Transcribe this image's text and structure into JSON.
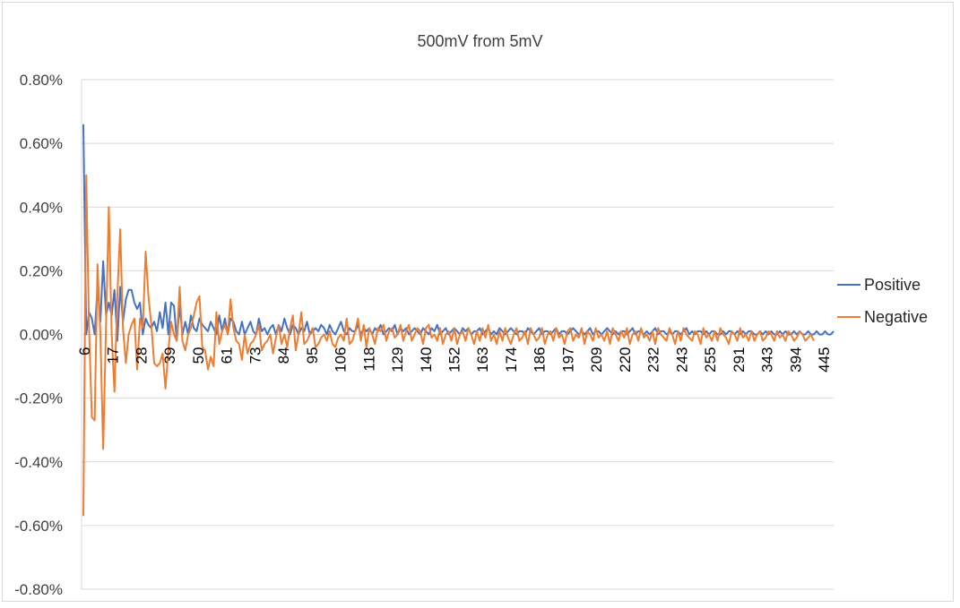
{
  "chart_data": {
    "type": "line",
    "title": "500mV from 5mV",
    "xlabel": "",
    "ylabel": "",
    "ylim": [
      -0.8,
      0.8
    ],
    "y_unit": "%",
    "y_ticks": [
      "0.80%",
      "0.60%",
      "0.40%",
      "0.20%",
      "0.00%",
      "-0.20%",
      "-0.40%",
      "-0.60%",
      "-0.80%"
    ],
    "x_tick_labels": [
      "6",
      "17",
      "28",
      "39",
      "50",
      "61",
      "73",
      "84",
      "95",
      "106",
      "118",
      "129",
      "140",
      "152",
      "163",
      "174",
      "186",
      "197",
      "209",
      "220",
      "232",
      "243",
      "255",
      "291",
      "343",
      "394",
      "445"
    ],
    "grid": true,
    "legend_position": "right",
    "series": [
      {
        "name": "Positive",
        "color": "#4472c4",
        "values": [
          0.66,
          0.0,
          0.07,
          0.05,
          0.0,
          0.15,
          0.04,
          0.23,
          0.06,
          0.1,
          0.06,
          0.14,
          -0.02,
          0.15,
          0.04,
          0.11,
          0.14,
          0.14,
          0.1,
          0.08,
          0.1,
          0.0,
          0.05,
          0.03,
          0.02,
          0.04,
          0.01,
          0.07,
          0.02,
          0.1,
          0.0,
          0.1,
          0.09,
          -0.02,
          0.09,
          0.0,
          0.04,
          0.0,
          0.06,
          0.02,
          0.01,
          0.05,
          0.03,
          0.02,
          0.01,
          0.04,
          0.02,
          0.0,
          0.06,
          0.01,
          0.05,
          0.0,
          0.05,
          0.04,
          0.01,
          0.0,
          0.04,
          0.0,
          0.02,
          0.04,
          0.01,
          0.0,
          0.05,
          0.01,
          0.02,
          0.0,
          0.02,
          0.03,
          0.0,
          0.03,
          0.01,
          0.05,
          0.02,
          0.0,
          0.03,
          0.02,
          0.0,
          0.02,
          0.01,
          0.04,
          0.0,
          0.01,
          0.02,
          0.01,
          0.03,
          0.02,
          0.0,
          0.03,
          0.01,
          0.0,
          0.02,
          0.04,
          0.01,
          0.0,
          0.02,
          0.01,
          0.01,
          0.03,
          0.0,
          0.02,
          0.01,
          0.02,
          0.0,
          0.02,
          0.01,
          0.03,
          0.0,
          0.01,
          0.02,
          0.01,
          0.03,
          0.0,
          0.02,
          0.01,
          0.02,
          0.0,
          0.01,
          0.02,
          0.01,
          0.0,
          0.02,
          0.01,
          0.0,
          0.02,
          0.01,
          0.03,
          0.0,
          0.01,
          0.02,
          0.0,
          0.01,
          0.02,
          0.01,
          0.0,
          0.02,
          0.01,
          0.02,
          0.0,
          0.01,
          0.01,
          0.02,
          0.0,
          0.01,
          0.02,
          0.0,
          0.01,
          0.0,
          0.02,
          0.01,
          0.0,
          0.01,
          0.02,
          0.01,
          0.0,
          0.01,
          0.01,
          0.0,
          0.02,
          0.01,
          0.0,
          0.01,
          0.02,
          0.0,
          0.01,
          0.01,
          0.0,
          0.01,
          0.02,
          0.0,
          0.01,
          0.01,
          0.0,
          0.01,
          0.02,
          0.01,
          0.0,
          0.01,
          0.0,
          0.01,
          0.02,
          0.0,
          0.01,
          0.01,
          0.0,
          0.01,
          0.02,
          0.01,
          0.0,
          0.01,
          0.0,
          0.01,
          0.01,
          0.0,
          0.01,
          0.02,
          0.0,
          0.01,
          0.01,
          0.0,
          0.01,
          0.0,
          0.01,
          0.02,
          0.0,
          0.01,
          0.01,
          0.0,
          0.01,
          0.0,
          0.01,
          0.01,
          0.0,
          0.01,
          0.02,
          0.0,
          0.01,
          0.0,
          0.01,
          0.01,
          0.0,
          0.01,
          0.0,
          0.01,
          0.01,
          0.0,
          0.0,
          0.01,
          0.0,
          0.01,
          0.01,
          0.0,
          0.01,
          0.0,
          0.01,
          0.0,
          0.01,
          0.01,
          0.0,
          0.0,
          0.01,
          0.0,
          0.01,
          0.0,
          0.01,
          0.0,
          0.0,
          0.01,
          0.0,
          0.01,
          0.0,
          0.0,
          0.01,
          0.0,
          0.01,
          0.0,
          0.0,
          0.01,
          0.0,
          0.0,
          0.01,
          0.0,
          0.0,
          0.01,
          0.0,
          0.0,
          0.01
        ]
      },
      {
        "name": "Negative",
        "color": "#ed7d31",
        "values": [
          -0.57,
          0.5,
          0.02,
          -0.26,
          -0.27,
          0.22,
          0.0,
          -0.36,
          0.03,
          0.4,
          0.0,
          -0.18,
          0.12,
          0.33,
          0.02,
          -0.09,
          0.0,
          0.03,
          0.05,
          -0.11,
          0.05,
          0.02,
          0.26,
          0.12,
          0.03,
          -0.09,
          -0.1,
          -0.09,
          -0.06,
          -0.17,
          -0.05,
          0.04,
          0.0,
          -0.02,
          0.15,
          -0.02,
          -0.05,
          0.0,
          0.02,
          0.06,
          0.1,
          0.12,
          -0.04,
          -0.05,
          -0.11,
          -0.07,
          -0.1,
          0.07,
          -0.03,
          0.01,
          0.03,
          0.0,
          0.11,
          0.02,
          -0.02,
          -0.03,
          -0.08,
          0.0,
          -0.06,
          -0.03,
          -0.02,
          0.0,
          0.03,
          -0.05,
          -0.03,
          -0.02,
          0.0,
          -0.06,
          -0.01,
          0.03,
          -0.03,
          0.0,
          -0.04,
          0.02,
          0.06,
          -0.05,
          0.0,
          0.07,
          -0.03,
          -0.02,
          0.0,
          0.02,
          -0.04,
          -0.03,
          -0.01,
          0.0,
          -0.02,
          0.01,
          -0.03,
          -0.04,
          -0.01,
          0.0,
          -0.02,
          0.05,
          -0.03,
          -0.02,
          0.01,
          0.05,
          -0.02,
          0.03,
          -0.04,
          0.02,
          0.0,
          -0.03,
          0.02,
          0.01,
          0.03,
          -0.02,
          0.01,
          0.02,
          -0.01,
          0.0,
          0.03,
          -0.02,
          0.01,
          0.03,
          -0.02,
          0.0,
          0.02,
          0.01,
          -0.03,
          0.02,
          0.03,
          -0.01,
          0.0,
          -0.02,
          0.02,
          -0.03,
          0.0,
          0.01,
          -0.02,
          0.02,
          -0.03,
          0.0,
          0.01,
          -0.02,
          0.02,
          0.0,
          -0.03,
          0.01,
          -0.02,
          0.02,
          -0.01,
          0.03,
          -0.02,
          0.0,
          -0.03,
          0.01,
          -0.02,
          0.02,
          -0.01,
          -0.03,
          0.0,
          0.02,
          -0.02,
          -0.01,
          0.01,
          -0.03,
          0.02,
          0.0,
          -0.02,
          -0.01,
          0.02,
          -0.03,
          0.0,
          0.01,
          -0.02,
          0.02,
          -0.01,
          0.0,
          -0.03,
          0.01,
          0.02,
          -0.02,
          0.0,
          -0.01,
          0.02,
          -0.03,
          0.01,
          0.0,
          -0.02,
          0.02,
          -0.01,
          0.0,
          -0.02,
          0.01,
          -0.03,
          0.02,
          0.0,
          -0.02,
          0.01,
          -0.01,
          0.02,
          -0.03,
          0.0,
          0.01,
          -0.02,
          0.02,
          -0.01,
          0.0,
          -0.02,
          0.01,
          -0.03,
          0.02,
          0.0,
          -0.01,
          -0.02,
          0.02,
          0.0,
          -0.03,
          0.01,
          -0.02,
          0.02,
          0.0,
          -0.01,
          -0.02,
          0.01,
          0.0,
          -0.03,
          0.02,
          -0.01,
          0.0,
          -0.02,
          0.01,
          -0.02,
          0.02,
          0.0,
          -0.01,
          -0.03,
          0.01,
          0.0,
          -0.02,
          0.02,
          -0.01,
          0.0,
          -0.02,
          0.01,
          -0.02,
          0.0,
          0.01,
          -0.02,
          -0.01,
          0.01,
          0.0,
          -0.02,
          0.01,
          -0.01,
          0.0,
          -0.02,
          0.01,
          0.0,
          -0.02,
          -0.01,
          0.01,
          0.0,
          -0.02,
          -0.01,
          0.0,
          -0.02
        ]
      }
    ]
  }
}
